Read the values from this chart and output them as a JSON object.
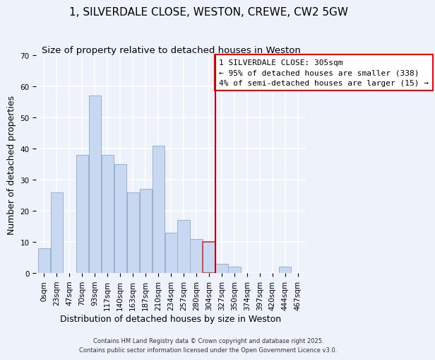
{
  "title": "1, SILVERDALE CLOSE, WESTON, CREWE, CW2 5GW",
  "subtitle": "Size of property relative to detached houses in Weston",
  "xlabel": "Distribution of detached houses by size in Weston",
  "ylabel": "Number of detached properties",
  "footnote1": "Contains HM Land Registry data © Crown copyright and database right 2025.",
  "footnote2": "Contains public sector information licensed under the Open Government Licence v3.0.",
  "bar_labels": [
    "0sqm",
    "23sqm",
    "47sqm",
    "70sqm",
    "93sqm",
    "117sqm",
    "140sqm",
    "163sqm",
    "187sqm",
    "210sqm",
    "234sqm",
    "257sqm",
    "280sqm",
    "304sqm",
    "327sqm",
    "350sqm",
    "374sqm",
    "397sqm",
    "420sqm",
    "444sqm",
    "467sqm"
  ],
  "bar_heights": [
    8,
    26,
    0,
    38,
    57,
    38,
    35,
    26,
    27,
    41,
    13,
    17,
    11,
    10,
    3,
    2,
    0,
    0,
    0,
    2,
    0
  ],
  "highlight_bar_index": 13,
  "red_line_bar_index": 13,
  "ylim": [
    0,
    70
  ],
  "yticks": [
    0,
    10,
    20,
    30,
    40,
    50,
    60,
    70
  ],
  "annotation_line1": "1 SILVERDALE CLOSE: 305sqm",
  "annotation_line2": "← 95% of detached houses are smaller (338)",
  "annotation_line3": "4% of semi-detached houses are larger (15) →",
  "bg_color": "#eef2fb",
  "bar_facecolor": "#c8d8f0",
  "bar_edgecolor": "#9ab0d0",
  "highlight_facecolor": "#c8d8f0",
  "highlight_edgecolor": "#cc3333",
  "grid_color": "#ffffff",
  "red_line_color": "#cc0000",
  "title_fontsize": 11,
  "subtitle_fontsize": 9.5,
  "axis_label_fontsize": 9,
  "tick_label_fontsize": 7.5,
  "annotation_fontsize": 8,
  "footnote_fontsize": 6
}
